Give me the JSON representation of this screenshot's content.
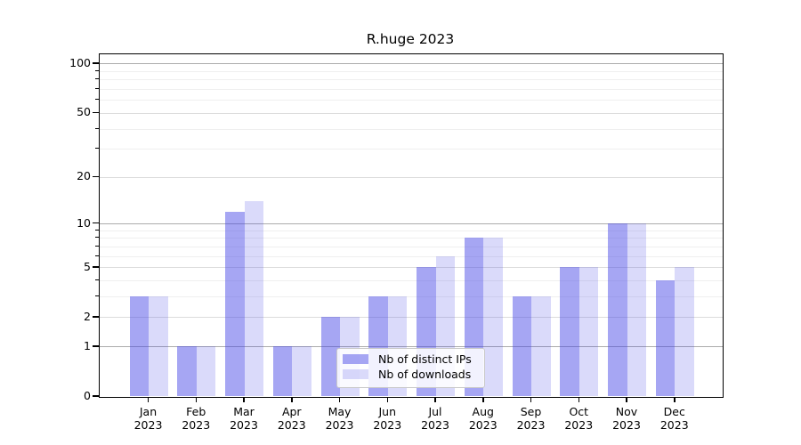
{
  "chart_data": {
    "type": "bar",
    "title": "R.huge 2023",
    "x_categories": [
      "Jan",
      "Feb",
      "Mar",
      "Apr",
      "May",
      "Jun",
      "Jul",
      "Aug",
      "Sep",
      "Oct",
      "Nov",
      "Dec"
    ],
    "x_year_line": "2023",
    "series": [
      {
        "name": "Nb of distinct IPs",
        "color": "rgba(70,70,230,0.48)",
        "values": [
          3,
          1,
          12,
          1,
          2,
          3,
          5,
          8,
          3,
          5,
          10,
          4
        ]
      },
      {
        "name": "Nb of downloads",
        "color": "rgba(70,70,230,0.20)",
        "values": [
          3,
          1,
          14,
          1,
          2,
          3,
          6,
          8,
          3,
          5,
          10,
          5
        ]
      }
    ],
    "yscale": "log10(1+x)",
    "ylim": [
      0,
      115
    ],
    "y_major_ticks": [
      0,
      1,
      2,
      5,
      10,
      20,
      50,
      100
    ],
    "y_decade_ticks": [
      1,
      10,
      100
    ],
    "y_minor_gridlines": [
      3,
      4,
      6,
      7,
      8,
      9,
      30,
      40,
      60,
      70,
      80,
      90
    ],
    "grid": true,
    "legend_position": "lower-center-inside"
  },
  "colors": {
    "bar_distinct_ips": "rgba(70,70,230,0.48)",
    "bar_downloads": "rgba(70,70,230,0.20)",
    "gridline_decade": "#ababab",
    "gridline_major": "#dcdcdc",
    "gridline_minor": "#efefef",
    "axis_spine": "#000000",
    "legend_border": "#c9c9c9"
  }
}
